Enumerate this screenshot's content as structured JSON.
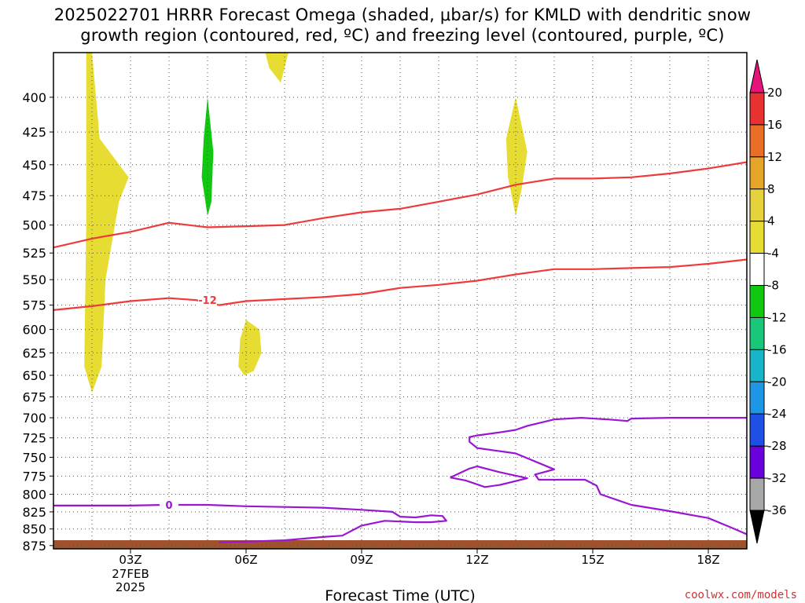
{
  "title_line1": "2025022701 HRRR Forecast Omega (shaded, μbar/s) for KMLD with dendritic snow",
  "title_line2": "growth region (contoured, red, ºC) and freezing level (contoured, purple, ºC)",
  "credit": "coolwx.com/models",
  "chart_data": {
    "type": "time-height cross section",
    "xlabel": "Forecast Time (UTC)",
    "x_range": [
      1,
      19
    ],
    "y_range": [
      880,
      370
    ],
    "x_ticks": [
      {
        "x": 3,
        "label": "03Z",
        "sub1": "27FEB",
        "sub2": "2025"
      },
      {
        "x": 6,
        "label": "06Z"
      },
      {
        "x": 9,
        "label": "09Z"
      },
      {
        "x": 12,
        "label": "12Z"
      },
      {
        "x": 15,
        "label": "15Z"
      },
      {
        "x": 18,
        "label": "18Z"
      }
    ],
    "y_ticks": [
      400,
      425,
      450,
      475,
      500,
      525,
      550,
      575,
      600,
      625,
      650,
      675,
      700,
      725,
      750,
      775,
      800,
      825,
      850,
      875
    ],
    "grid": true,
    "shaded_regions": [
      {
        "name": "omega-pos-a",
        "color": "#e6dc32",
        "points": [
          [
            1.85,
            370
          ],
          [
            2.0,
            370
          ],
          [
            2.2,
            430
          ],
          [
            2.95,
            460
          ],
          [
            2.7,
            480
          ],
          [
            2.35,
            550
          ],
          [
            2.25,
            640
          ],
          [
            2.0,
            670
          ],
          [
            1.8,
            640
          ],
          [
            1.85,
            500
          ]
        ]
      },
      {
        "name": "omega-pos-b",
        "color": "#e6dc32",
        "points": [
          [
            6.5,
            370
          ],
          [
            7.1,
            370
          ],
          [
            6.9,
            390
          ],
          [
            6.6,
            380
          ]
        ]
      },
      {
        "name": "omega-neg-a",
        "color": "#11c811",
        "points": [
          [
            5.0,
            400
          ],
          [
            5.15,
            440
          ],
          [
            5.1,
            480
          ],
          [
            5.0,
            492
          ],
          [
            4.85,
            460
          ],
          [
            4.9,
            430
          ]
        ]
      },
      {
        "name": "omega-pos-c",
        "color": "#e6dc32",
        "points": [
          [
            6.0,
            590
          ],
          [
            6.35,
            600
          ],
          [
            6.4,
            625
          ],
          [
            6.2,
            645
          ],
          [
            5.95,
            650
          ],
          [
            5.8,
            640
          ],
          [
            5.85,
            610
          ]
        ]
      },
      {
        "name": "omega-pos-d",
        "color": "#e6dc32",
        "points": [
          [
            13.0,
            400
          ],
          [
            13.3,
            440
          ],
          [
            13.15,
            470
          ],
          [
            13.0,
            492
          ],
          [
            12.8,
            460
          ],
          [
            12.75,
            430
          ]
        ]
      }
    ],
    "dgz_contours": [
      {
        "name": "dgz-upper",
        "points": [
          [
            1,
            520
          ],
          [
            2,
            512
          ],
          [
            3,
            506
          ],
          [
            4,
            498
          ],
          [
            5,
            502
          ],
          [
            6,
            501
          ],
          [
            7,
            500
          ],
          [
            8,
            494
          ],
          [
            9,
            489
          ],
          [
            10,
            486
          ],
          [
            11,
            480
          ],
          [
            12,
            474
          ],
          [
            13,
            466
          ],
          [
            14,
            461
          ],
          [
            15,
            461
          ],
          [
            16,
            460
          ],
          [
            17,
            457
          ],
          [
            18,
            453
          ],
          [
            19,
            448
          ]
        ]
      },
      {
        "name": "dgz-lower",
        "label": "-12",
        "label_x": 5.0,
        "points": [
          [
            1,
            580
          ],
          [
            2,
            576
          ],
          [
            3,
            571
          ],
          [
            4,
            568
          ],
          [
            4.7,
            570
          ],
          [
            5.3,
            575
          ],
          [
            6,
            571
          ],
          [
            7,
            569
          ],
          [
            8,
            567
          ],
          [
            9,
            564
          ],
          [
            10,
            558
          ],
          [
            11,
            555
          ],
          [
            12,
            551
          ],
          [
            13,
            545
          ],
          [
            14,
            540
          ],
          [
            15,
            540
          ],
          [
            16,
            539
          ],
          [
            17,
            538
          ],
          [
            18,
            535
          ],
          [
            19,
            531
          ]
        ]
      }
    ],
    "freezing_contours": [
      {
        "name": "fz-main",
        "label": "0",
        "label_x": 4.0,
        "points": [
          [
            1,
            816
          ],
          [
            2,
            816
          ],
          [
            3,
            816
          ],
          [
            3.9,
            815
          ],
          [
            4.2,
            815
          ],
          [
            5,
            815
          ],
          [
            6,
            817
          ],
          [
            7,
            818
          ],
          [
            8,
            819
          ],
          [
            9,
            822
          ],
          [
            9.8,
            825
          ],
          [
            10,
            832
          ],
          [
            10.4,
            833
          ],
          [
            10.8,
            830
          ],
          [
            11.1,
            831
          ],
          [
            11.2,
            838
          ],
          [
            10.8,
            840
          ],
          [
            10.4,
            840
          ],
          [
            9.6,
            838
          ],
          [
            9,
            845
          ],
          [
            8.5,
            860
          ],
          [
            8,
            862
          ],
          [
            7,
            867
          ],
          [
            6,
            869
          ],
          [
            5.3,
            870
          ]
        ]
      },
      {
        "name": "fz-upper",
        "points": [
          [
            19,
            700
          ],
          [
            18,
            700
          ],
          [
            17,
            700
          ],
          [
            16,
            701
          ],
          [
            15.9,
            704
          ],
          [
            15.4,
            702
          ],
          [
            14.7,
            700
          ],
          [
            14,
            702
          ],
          [
            13.3,
            710
          ],
          [
            13,
            715
          ],
          [
            12.6,
            718
          ],
          [
            12,
            722
          ],
          [
            11.8,
            724
          ],
          [
            11.8,
            730
          ],
          [
            12,
            738
          ],
          [
            13,
            745
          ],
          [
            14,
            766
          ],
          [
            13.5,
            773
          ],
          [
            13.6,
            780
          ],
          [
            14.2,
            780
          ],
          [
            14.8,
            780
          ],
          [
            15.1,
            788
          ],
          [
            15.2,
            800
          ],
          [
            16,
            815
          ],
          [
            17,
            824
          ],
          [
            18,
            834
          ],
          [
            18.6,
            848
          ],
          [
            19,
            858
          ]
        ]
      },
      {
        "name": "fz-loop",
        "points": [
          [
            11.3,
            777
          ],
          [
            11.8,
            765
          ],
          [
            12,
            762
          ],
          [
            12.6,
            770
          ],
          [
            13.3,
            778
          ],
          [
            12.6,
            787
          ],
          [
            12.2,
            790
          ],
          [
            11.7,
            781
          ],
          [
            11.3,
            777
          ]
        ]
      }
    ],
    "colorbar": {
      "levels": [
        "20",
        "16",
        "12",
        "8",
        "4",
        "-4",
        "-8",
        "-12",
        "-16",
        "-20",
        "-24",
        "-28",
        "-32",
        "-36"
      ],
      "colors": [
        "#e83232",
        "#ea6e28",
        "#e6a428",
        "#e6d23c",
        "#e6dc32",
        "#ffffff",
        "#11c811",
        "#18c878",
        "#18b4c8",
        "#1e96e6",
        "#1e50e6",
        "#6a00dc",
        "#a000d2",
        "#a8a8a8"
      ],
      "top_arrow_color": "#e6147a",
      "bottom_arrow_color": "#000000"
    }
  }
}
